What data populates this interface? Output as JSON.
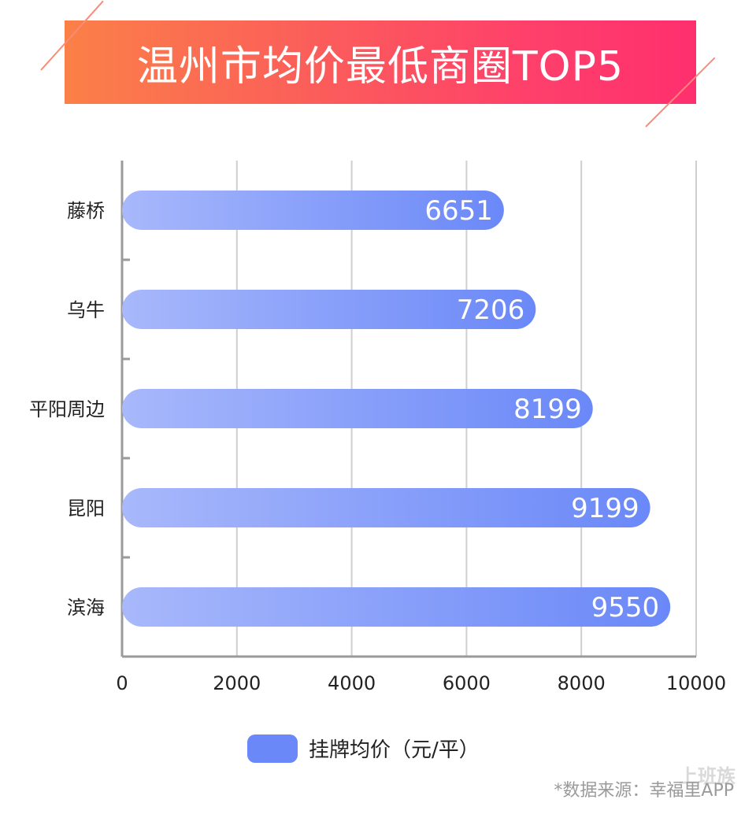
{
  "chart_data": {
    "type": "bar",
    "orientation": "horizontal",
    "title": "温州市均价最低商圈TOP5",
    "categories": [
      "藤桥",
      "乌牛",
      "平阳周边",
      "昆阳",
      "滨海"
    ],
    "series": [
      {
        "name": "挂牌均价（元/平）",
        "values": [
          6651,
          7206,
          8199,
          9199,
          9550
        ],
        "color": "#6a88f8"
      }
    ],
    "xlim": [
      0,
      10000
    ],
    "x_ticks": [
      "0",
      "2000",
      "4000",
      "6000",
      "8000",
      "10000"
    ],
    "grid": true,
    "legend_position": "bottom",
    "bar_gradient": [
      "#a8b8fb",
      "#6a88f8"
    ]
  },
  "source_note": "*数据来源：幸福里APP",
  "watermark": "上班族"
}
